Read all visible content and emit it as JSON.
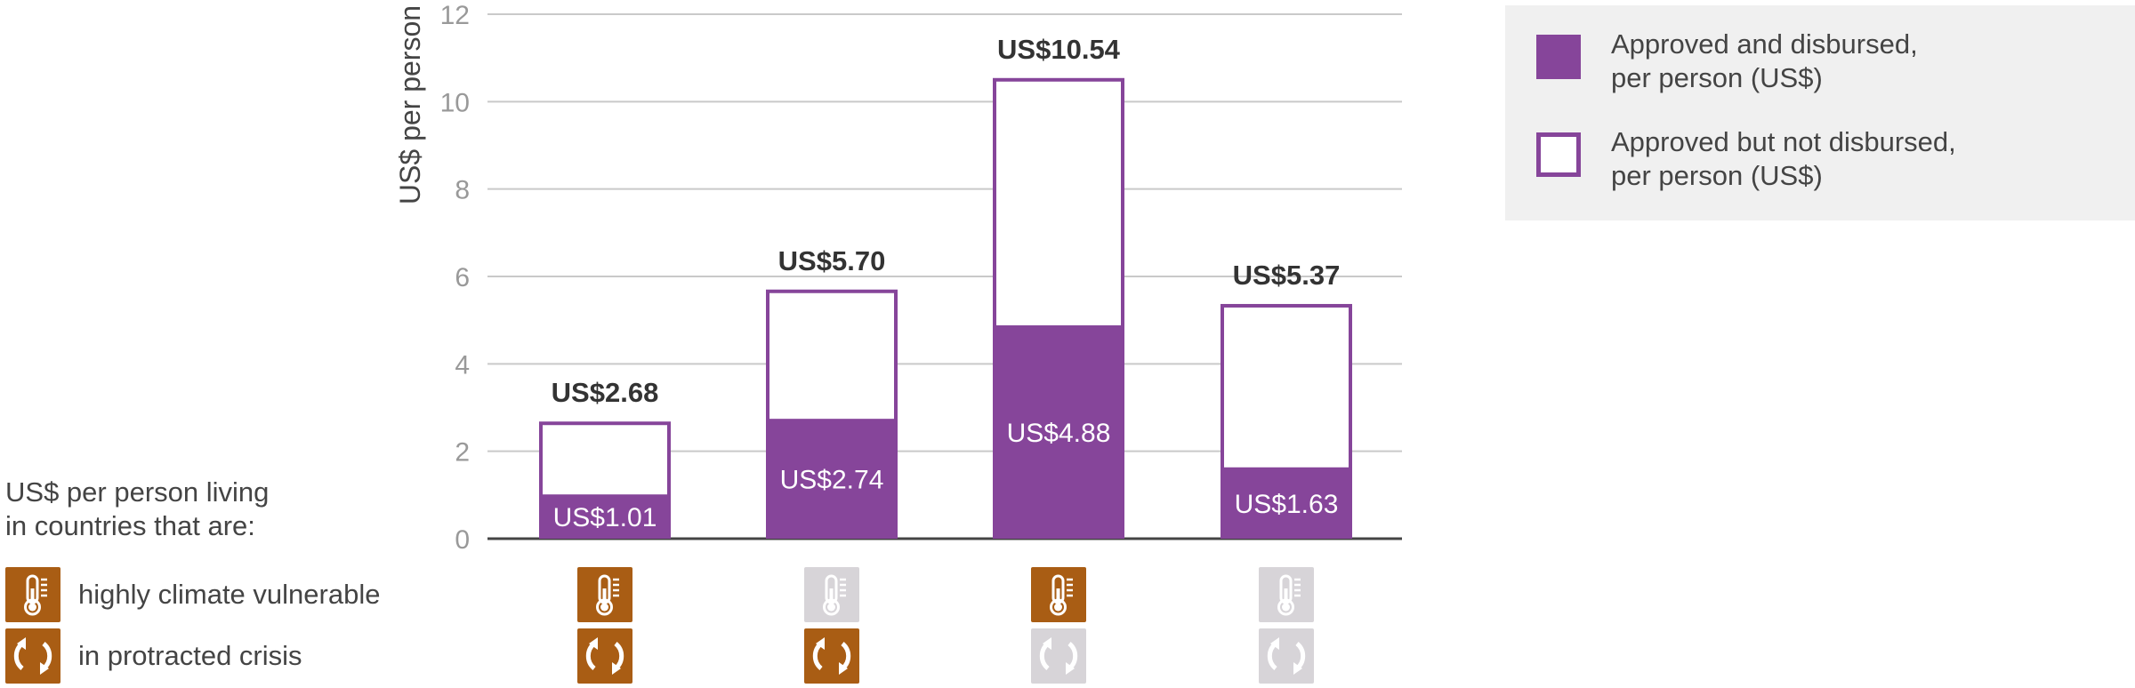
{
  "colors": {
    "disbursed": "#86459a",
    "not_disbursed_outline": "#86459a",
    "icon_active": "#a95d14",
    "icon_inactive": "#d7d4d8",
    "grid": "#c9c9c9",
    "axis": "#444444",
    "legend_bg": "#f0f0f0"
  },
  "legend": [
    {
      "label": "Approved and disbursed,\nper person (US$)",
      "style": "filled"
    },
    {
      "label": "Approved but not disbursed,\nper person (US$)",
      "style": "outline"
    }
  ],
  "key": {
    "title": "US$ per person living\nin countries that are:",
    "rows": [
      {
        "label": "highly climate vulnerable",
        "icon": "thermometer-icon"
      },
      {
        "label": "in protracted crisis",
        "icon": "cycle-arrows-icon"
      }
    ]
  },
  "chart_data": {
    "type": "bar",
    "stacked": true,
    "ylabel": "US$ per person",
    "ylim": [
      0,
      12
    ],
    "yticks": [
      "0",
      "2",
      "4",
      "6",
      "8",
      "10",
      "12"
    ],
    "grid": true,
    "series": [
      {
        "name": "Approved and disbursed, per person (US$)",
        "values": [
          1.01,
          2.74,
          4.88,
          1.63
        ]
      },
      {
        "name": "Approved but not disbursed, per person (US$)",
        "values": [
          1.67,
          2.96,
          5.66,
          3.74
        ]
      }
    ],
    "total_labels": [
      "US$2.68",
      "US$5.70",
      "US$10.54",
      "US$5.37"
    ],
    "disbursed_labels": [
      "US$1.01",
      "US$2.74",
      "US$4.88",
      "US$1.63"
    ],
    "group_flags": [
      {
        "climate_vulnerable": true,
        "protracted_crisis": true
      },
      {
        "climate_vulnerable": false,
        "protracted_crisis": true
      },
      {
        "climate_vulnerable": true,
        "protracted_crisis": false
      },
      {
        "climate_vulnerable": false,
        "protracted_crisis": false
      }
    ]
  }
}
